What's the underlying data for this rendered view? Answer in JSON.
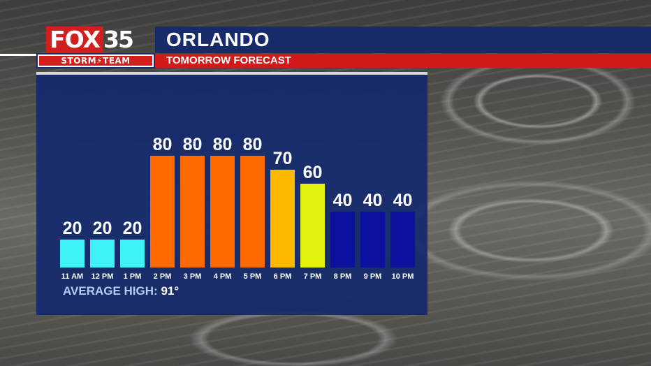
{
  "header": {
    "logo_fox": "FOX",
    "logo_channel": "35",
    "logo_team": "STORM⚡TEAM",
    "title": "ORLANDO",
    "subtitle": "TOMORROW FORECAST"
  },
  "footer": {
    "average_label": "AVERAGE HIGH:",
    "average_value": "91°"
  },
  "colors": {
    "cyan": "#3ef3f6",
    "orange": "#ff6a00",
    "amber": "#ffb800",
    "yellow": "#e2f20e",
    "navy": "#0d0f9e"
  },
  "chart_data": {
    "type": "bar",
    "categories": [
      "11 AM",
      "12 PM",
      "1 PM",
      "2 PM",
      "3 PM",
      "4 PM",
      "5 PM",
      "6 PM",
      "7 PM",
      "8 PM",
      "9 PM",
      "10 PM"
    ],
    "values": [
      20,
      20,
      20,
      80,
      80,
      80,
      80,
      70,
      60,
      40,
      40,
      40
    ],
    "bar_colors": [
      "#3ef3f6",
      "#3ef3f6",
      "#3ef3f6",
      "#ff6a00",
      "#ff6a00",
      "#ff6a00",
      "#ff6a00",
      "#ffb800",
      "#e2f20e",
      "#0d0f9e",
      "#0d0f9e",
      "#0d0f9e"
    ],
    "data_labels": [
      "20",
      "20",
      "20",
      "80",
      "80",
      "80",
      "80",
      "70",
      "60",
      "40",
      "40",
      "40"
    ],
    "ylim": [
      0,
      100
    ],
    "grid": false,
    "legend": "none"
  }
}
